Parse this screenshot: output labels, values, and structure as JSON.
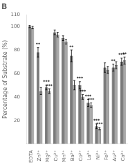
{
  "chart_data": {
    "type": "bar",
    "title": "B",
    "ylabel": "Percentage of Substrate (%)",
    "categories": [
      "EDTA",
      "Zn²⁺",
      "Mg²⁺",
      "Cu²⁺",
      "Mn²⁺",
      "Ba²⁺",
      "Co²⁺",
      "La²⁺",
      "Ni²⁺",
      "Fe²⁺",
      "Au²⁺",
      "Ca²⁺"
    ],
    "series": [
      {
        "color": "#7a7a7a",
        "values": [
          100,
          78,
          48,
          95,
          90,
          75,
          50,
          35,
          15,
          65,
          65,
          70
        ],
        "errors": [
          1,
          4,
          2,
          2,
          2,
          5,
          3,
          3,
          2,
          4,
          3,
          3
        ],
        "significance": [
          null,
          "**",
          "***",
          null,
          null,
          "**",
          "***",
          "***",
          "***",
          null,
          "**",
          "***"
        ]
      },
      {
        "color": "#a8a8a8",
        "values": [
          99,
          45,
          45,
          93,
          87,
          50,
          40,
          33,
          13,
          63,
          67,
          71
        ],
        "errors": [
          1,
          3,
          2,
          2,
          2,
          4,
          2,
          2,
          1,
          3,
          3,
          3
        ],
        "significance": [
          null,
          null,
          "***",
          null,
          null,
          null,
          "***",
          "***",
          "***",
          null,
          null,
          "**"
        ]
      }
    ],
    "ylim": [
      0,
      110
    ],
    "yticks": [
      20,
      40,
      60,
      80,
      100,
      110
    ],
    "grid": false
  }
}
